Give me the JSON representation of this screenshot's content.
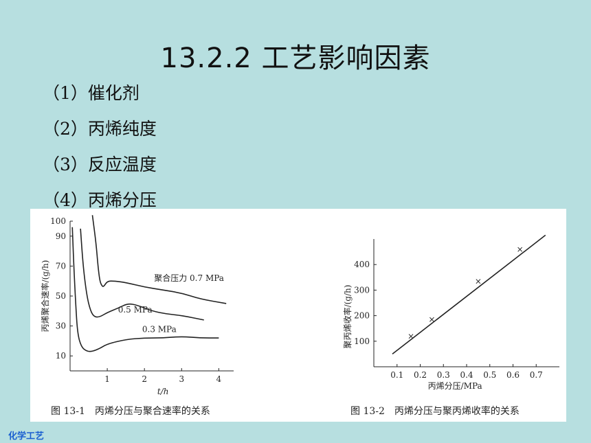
{
  "title": "13.2.2 工艺影响因素",
  "items": [
    "（1）催化剂",
    "（2）丙烯纯度",
    "（3）反应温度",
    "（4）丙烯分压"
  ],
  "footer": "化学工艺",
  "chart_data": [
    {
      "type": "line",
      "caption": "图 13-1　丙烯分压与聚合速率的关系",
      "xlabel": "t/h",
      "ylabel": "丙烯聚合速率/(g/h)",
      "xlim": [
        0,
        4.4
      ],
      "ylim": [
        0,
        100
      ],
      "xticks": [
        1,
        2,
        3,
        4
      ],
      "yticks": [
        10,
        30,
        50,
        70,
        90,
        100
      ],
      "series": [
        {
          "name": "聚合压力 0.7 MPa",
          "label": "聚合压力 0.7 MPa",
          "x": [
            0.6,
            0.7,
            0.75,
            0.8,
            0.85,
            0.9,
            1.0,
            1.2,
            1.5,
            2.0,
            2.5,
            3.0,
            3.5,
            4.2
          ],
          "y": [
            104,
            85,
            70,
            60,
            57,
            56,
            60,
            60,
            59,
            56,
            54,
            52,
            48,
            45
          ]
        },
        {
          "name": "0.5 MPa",
          "label": "0.5 MPa",
          "x": [
            0.28,
            0.35,
            0.45,
            0.55,
            0.65,
            0.8,
            1.0,
            1.3,
            1.55,
            1.8,
            2.2,
            2.6,
            3.0,
            3.6
          ],
          "y": [
            95,
            70,
            50,
            40,
            36,
            36,
            39,
            42,
            45,
            44,
            40,
            38,
            37,
            34
          ]
        },
        {
          "name": "0.3 MPa",
          "label": "0.3 MPa",
          "x": [
            0.06,
            0.1,
            0.15,
            0.2,
            0.3,
            0.45,
            0.6,
            0.8,
            1.0,
            1.5,
            2.0,
            2.5,
            3.0,
            3.5,
            4.0
          ],
          "y": [
            96,
            70,
            45,
            25,
            16,
            13,
            13,
            15,
            18,
            21,
            22,
            22,
            23,
            22,
            22
          ]
        }
      ]
    },
    {
      "type": "line",
      "caption": "图 13-2　丙烯分压与聚丙烯收率的关系",
      "xlabel": "丙烯分压/MPa",
      "ylabel": "聚丙烯收率/(g/h)",
      "xlim": [
        0,
        0.8
      ],
      "ylim": [
        0,
        500
      ],
      "xticks": [
        0.1,
        0.2,
        0.3,
        0.4,
        0.5,
        0.6,
        0.7
      ],
      "yticks": [
        100,
        200,
        300,
        400
      ],
      "series": [
        {
          "name": "",
          "x": [
            0.08,
            0.74
          ],
          "y": [
            50,
            515
          ]
        }
      ],
      "markers": {
        "x": [
          0.16,
          0.25,
          0.45,
          0.63
        ],
        "y": [
          120,
          185,
          335,
          460
        ]
      }
    }
  ]
}
